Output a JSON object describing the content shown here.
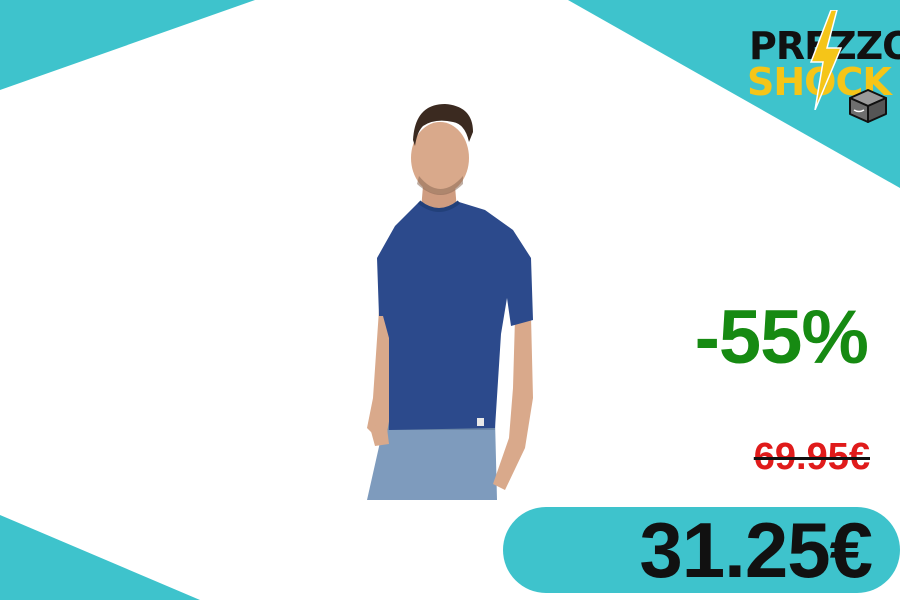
{
  "logo": {
    "line1": "PREZZO",
    "line2": "SHOCK",
    "icons": [
      "lightning-bolt",
      "package-box"
    ]
  },
  "product": {
    "image": "man-wearing-blue-short-sleeve-t-shirt-and-jeans",
    "colors": {
      "shirt": "#2c4a8c",
      "jeans": "#7e9bbd",
      "skin": "#d9a98b",
      "hair": "#3b2a20"
    }
  },
  "pricing": {
    "discount": "-55%",
    "old_price": "69.95€",
    "new_price": "31.25€"
  },
  "colors": {
    "accent": "#3ec3cc",
    "discount": "#168a12",
    "old_price": "#e01b1b",
    "logo_yellow": "#f5c518",
    "text_dark": "#111111"
  }
}
